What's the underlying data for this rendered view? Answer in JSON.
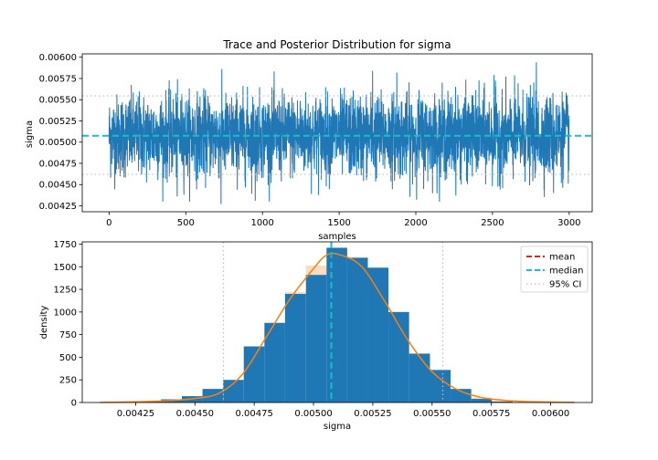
{
  "chart_data": [
    {
      "type": "line",
      "title": "Trace and Posterior Distribution for sigma",
      "xlabel": "samples",
      "ylabel": "sigma",
      "xlim": [
        -175,
        3150
      ],
      "ylim": [
        0.00418,
        0.00604
      ],
      "xticks": [
        0,
        500,
        1000,
        1500,
        2000,
        2500,
        3000
      ],
      "xtick_labels": [
        "0",
        "500",
        "1000",
        "1500",
        "2000",
        "2500",
        "3000"
      ],
      "yticks": [
        0.00425,
        0.0045,
        0.00475,
        0.005,
        0.00525,
        0.0055,
        0.00575,
        0.006
      ],
      "ytick_labels": [
        "0.00425",
        "0.00450",
        "0.00475",
        "0.00500",
        "0.00525",
        "0.00550",
        "0.00575",
        "0.00600"
      ],
      "n_samples": 3000,
      "trace_color": "#1f77b4",
      "median": 0.005075,
      "ci_95": [
        0.00462,
        0.005545
      ],
      "trace_summary": {
        "center": 0.005075,
        "sd": 0.00024,
        "min": 0.00427,
        "max": 0.00594
      },
      "trace_extremes": [
        {
          "x": 444,
          "y": 0.00436
        },
        {
          "x": 730,
          "y": 0.00427
        },
        {
          "x": 953,
          "y": 0.00431
        },
        {
          "x": 1718,
          "y": 0.00584
        },
        {
          "x": 1876,
          "y": 0.00582
        },
        {
          "x": 2510,
          "y": 0.00579
        },
        {
          "x": 2786,
          "y": 0.00594
        },
        {
          "x": 2898,
          "y": 0.0044
        }
      ],
      "grid": false
    },
    {
      "type": "bar",
      "xlabel": "sigma",
      "ylabel": "density",
      "xlim": [
        0.004025,
        0.006175
      ],
      "ylim": [
        0,
        1775
      ],
      "xticks": [
        0.00425,
        0.0045,
        0.00475,
        0.005,
        0.00525,
        0.0055,
        0.00575,
        0.006
      ],
      "xtick_labels": [
        "0.00425",
        "0.00450",
        "0.00475",
        "0.00500",
        "0.00525",
        "0.00550",
        "0.00575",
        "0.00600"
      ],
      "yticks": [
        0,
        250,
        500,
        750,
        1000,
        1250,
        1500,
        1750
      ],
      "ytick_labels": [
        "0",
        "250",
        "500",
        "750",
        "1000",
        "1250",
        "1500",
        "1750"
      ],
      "histogram": {
        "bin_edges": [
          0.00427,
          0.004357,
          0.004445,
          0.004532,
          0.004619,
          0.004706,
          0.004793,
          0.00488,
          0.004968,
          0.005055,
          0.005142,
          0.005229,
          0.005316,
          0.005403,
          0.005491,
          0.005578,
          0.005665,
          0.005752,
          0.005839
        ],
        "densities": [
          12,
          35,
          70,
          150,
          250,
          620,
          880,
          1200,
          1410,
          1710,
          1600,
          1490,
          1000,
          540,
          360,
          150,
          40,
          10
        ],
        "color": "#1f77b4"
      },
      "kde": {
        "x": [
          0.0041,
          0.00425,
          0.0044,
          0.0045,
          0.0046,
          0.0047,
          0.0048,
          0.0049,
          0.005,
          0.00505,
          0.0051,
          0.0052,
          0.0053,
          0.0054,
          0.0055,
          0.0056,
          0.0057,
          0.0058,
          0.0059,
          0.0061
        ],
        "y": [
          1,
          8,
          22,
          45,
          100,
          310,
          720,
          1140,
          1480,
          1620,
          1640,
          1510,
          1120,
          680,
          340,
          150,
          60,
          25,
          10,
          1
        ],
        "color": "#ff7f0e"
      },
      "mean": 0.005075,
      "median": 0.005075,
      "ci_95": [
        0.00462,
        0.005545
      ],
      "grid": false,
      "legend": {
        "position": "top-right",
        "entries": [
          {
            "label": "mean",
            "color": "#d62728",
            "style": "dashed"
          },
          {
            "label": "median",
            "color": "#17becf",
            "style": "dashed"
          },
          {
            "label": "95% CI",
            "color": "#bfbfbf",
            "style": "dotted"
          }
        ]
      }
    }
  ]
}
